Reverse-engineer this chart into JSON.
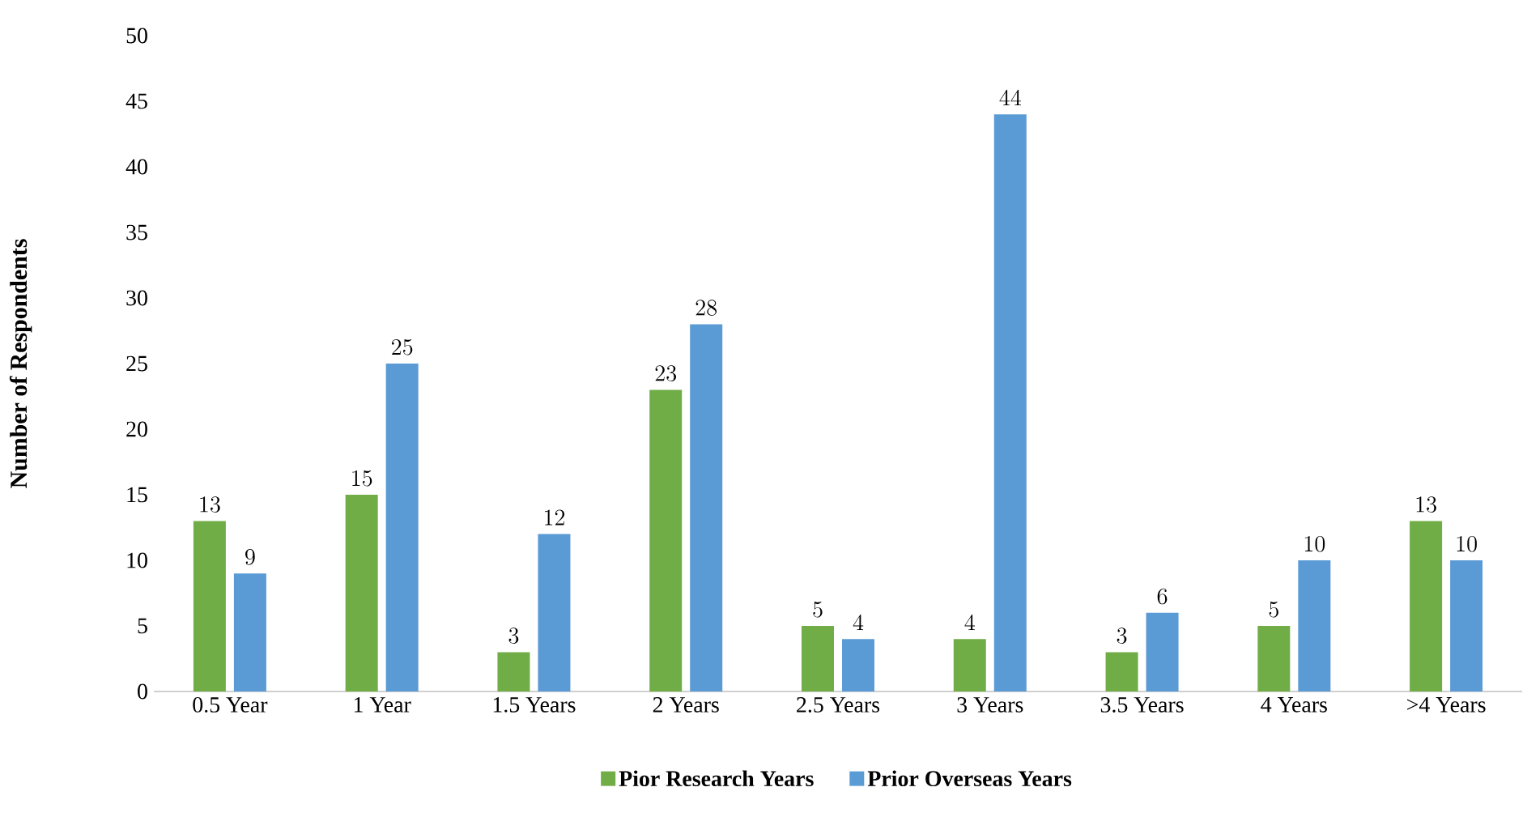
{
  "chart_data": {
    "type": "bar",
    "ylabel": "Number of Respondents",
    "categories": [
      "0.5 Year",
      "1 Year",
      "1.5 Years",
      "2 Years",
      "2.5 Years",
      "3 Years",
      "3.5 Years",
      "4 Years",
      ">4 Years"
    ],
    "series": [
      {
        "name": "Pior Research Years",
        "color": "#70ad47",
        "values": [
          13,
          15,
          3,
          23,
          5,
          4,
          3,
          5,
          13
        ]
      },
      {
        "name": "Prior Overseas Years",
        "color": "#5b9bd5",
        "values": [
          9,
          25,
          12,
          28,
          4,
          44,
          6,
          10,
          10
        ]
      }
    ],
    "ylim": [
      0,
      50
    ],
    "yticks": [
      0,
      5,
      10,
      15,
      20,
      25,
      30,
      35,
      40,
      45,
      50
    ],
    "data_labels": true,
    "legend": "bottom",
    "grid": false
  }
}
